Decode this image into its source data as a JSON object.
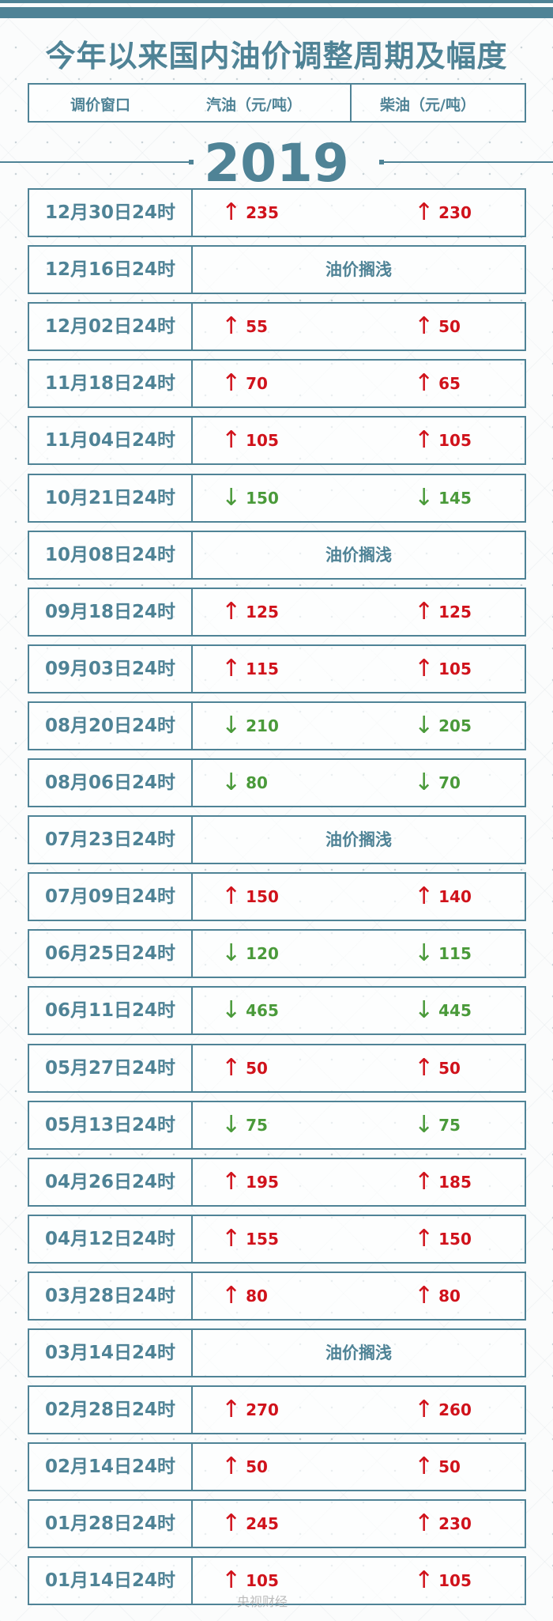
{
  "title": "今年以来国内油价调整周期及幅度",
  "header": {
    "window": "调价窗口",
    "gasoline": "汽油（元/吨）",
    "diesel": "柴油（元/吨）"
  },
  "year": "2019",
  "colors": {
    "teal": "#4f8396",
    "up": "#d0121b",
    "down": "#4a9a3a"
  },
  "rows": [
    {
      "date": "12月30日24时",
      "dir": "up",
      "gasoline": "235",
      "diesel": "230"
    },
    {
      "date": "12月16日24时",
      "dir": "none",
      "note": "油价搁浅"
    },
    {
      "date": "12月02日24时",
      "dir": "up",
      "gasoline": "55",
      "diesel": "50"
    },
    {
      "date": "11月18日24时",
      "dir": "up",
      "gasoline": "70",
      "diesel": "65"
    },
    {
      "date": "11月04日24时",
      "dir": "up",
      "gasoline": "105",
      "diesel": "105"
    },
    {
      "date": "10月21日24时",
      "dir": "down",
      "gasoline": "150",
      "diesel": "145"
    },
    {
      "date": "10月08日24时",
      "dir": "none",
      "note": "油价搁浅"
    },
    {
      "date": "09月18日24时",
      "dir": "up",
      "gasoline": "125",
      "diesel": "125"
    },
    {
      "date": "09月03日24时",
      "dir": "up",
      "gasoline": "115",
      "diesel": "105"
    },
    {
      "date": "08月20日24时",
      "dir": "down",
      "gasoline": "210",
      "diesel": "205"
    },
    {
      "date": "08月06日24时",
      "dir": "down",
      "gasoline": "80",
      "diesel": "70"
    },
    {
      "date": "07月23日24时",
      "dir": "none",
      "note": "油价搁浅"
    },
    {
      "date": "07月09日24时",
      "dir": "up",
      "gasoline": "150",
      "diesel": "140"
    },
    {
      "date": "06月25日24时",
      "dir": "down",
      "gasoline": "120",
      "diesel": "115"
    },
    {
      "date": "06月11日24时",
      "dir": "down",
      "gasoline": "465",
      "diesel": "445"
    },
    {
      "date": "05月27日24时",
      "dir": "up",
      "gasoline": "50",
      "diesel": "50"
    },
    {
      "date": "05月13日24时",
      "dir": "down",
      "gasoline": "75",
      "diesel": "75"
    },
    {
      "date": "04月26日24时",
      "dir": "up",
      "gasoline": "195",
      "diesel": "185"
    },
    {
      "date": "04月12日24时",
      "dir": "up",
      "gasoline": "155",
      "diesel": "150"
    },
    {
      "date": "03月28日24时",
      "dir": "up",
      "gasoline": "80",
      "diesel": "80"
    },
    {
      "date": "03月14日24时",
      "dir": "none",
      "note": "油价搁浅"
    },
    {
      "date": "02月28日24时",
      "dir": "up",
      "gasoline": "270",
      "diesel": "260"
    },
    {
      "date": "02月14日24时",
      "dir": "up",
      "gasoline": "50",
      "diesel": "50"
    },
    {
      "date": "01月28日24时",
      "dir": "up",
      "gasoline": "245",
      "diesel": "230"
    },
    {
      "date": "01月14日24时",
      "dir": "up",
      "gasoline": "105",
      "diesel": "105"
    }
  ],
  "watermark": "央视财经"
}
